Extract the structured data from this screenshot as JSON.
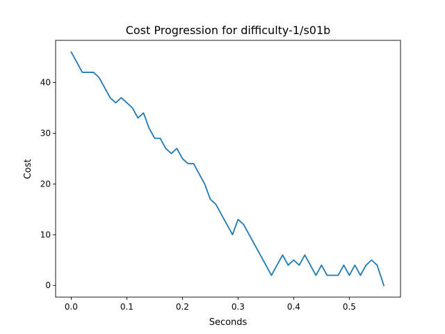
{
  "chart_data": {
    "type": "line",
    "title": "Cost Progression for difficulty-1/s01b",
    "xlabel": "Seconds",
    "ylabel": "Cost",
    "xlim": [
      -0.028,
      0.592
    ],
    "ylim": [
      -2.3,
      48.3
    ],
    "xticks": [
      0.0,
      0.1,
      0.2,
      0.3,
      0.4,
      0.5
    ],
    "xtick_labels": [
      "0.0",
      "0.1",
      "0.2",
      "0.3",
      "0.4",
      "0.5"
    ],
    "yticks": [
      0,
      10,
      20,
      30,
      40
    ],
    "ytick_labels": [
      "0",
      "10",
      "20",
      "30",
      "40"
    ],
    "grid": false,
    "colors": {
      "series": "#1f77b4"
    },
    "series": [
      {
        "x": [
          0.0,
          0.01,
          0.02,
          0.03,
          0.04,
          0.05,
          0.06,
          0.07,
          0.08,
          0.09,
          0.1,
          0.11,
          0.12,
          0.13,
          0.14,
          0.15,
          0.16,
          0.17,
          0.18,
          0.19,
          0.2,
          0.21,
          0.22,
          0.23,
          0.24,
          0.25,
          0.26,
          0.27,
          0.28,
          0.29,
          0.3,
          0.31,
          0.32,
          0.33,
          0.34,
          0.35,
          0.36,
          0.37,
          0.38,
          0.39,
          0.4,
          0.41,
          0.42,
          0.43,
          0.44,
          0.45,
          0.46,
          0.47,
          0.48,
          0.49,
          0.5,
          0.51,
          0.52,
          0.53,
          0.54,
          0.55,
          0.562
        ],
        "y": [
          46,
          44,
          42,
          42,
          42,
          41,
          39,
          37,
          36,
          37,
          36,
          35,
          33,
          34,
          31,
          29,
          29,
          27,
          26,
          27,
          25,
          24,
          24,
          22,
          20,
          17,
          16,
          14,
          12,
          10,
          13,
          12,
          10,
          8,
          6,
          4,
          2,
          4,
          6,
          4,
          5,
          4,
          6,
          4,
          2,
          4,
          2,
          2,
          2,
          4,
          2,
          4,
          2,
          4,
          5,
          4,
          0
        ]
      }
    ]
  }
}
